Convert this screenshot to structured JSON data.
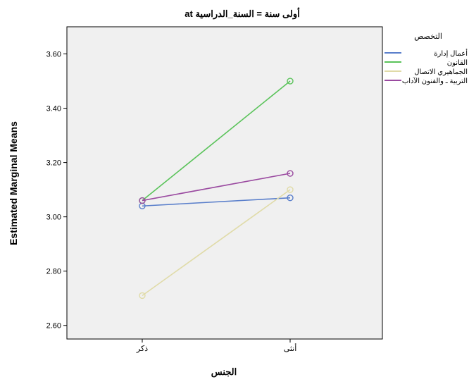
{
  "chart_data": {
    "type": "line",
    "title": "أولى سنة = السنة_الدراسية at",
    "xlabel": "الجنس",
    "ylabel": "Estimated Marginal Means",
    "categories": [
      "ذكر",
      "أنثى"
    ],
    "ylim": [
      2.55,
      3.7
    ],
    "yticks": [
      "2.60",
      "2.80",
      "3.00",
      "3.20",
      "3.40",
      "3.60"
    ],
    "ytick_values": [
      2.6,
      2.8,
      3.0,
      3.2,
      3.4,
      3.6
    ],
    "grid": false,
    "plot_background": "#f0f0f0",
    "legend": {
      "title": "التخصص",
      "placement": "right"
    },
    "series": [
      {
        "name": "أعمال إدارة",
        "color": "#5a7fcb",
        "values": [
          3.04,
          3.07
        ]
      },
      {
        "name": "القانون",
        "color": "#5ac35a",
        "values": [
          3.06,
          3.5
        ]
      },
      {
        "name": "الجماهيري الاتصال",
        "color": "#e0dba8",
        "values": [
          2.71,
          3.1
        ]
      },
      {
        "name": "التربية ـ والفنون الآداب",
        "color": "#9a4aa0",
        "values": [
          3.06,
          3.16
        ]
      }
    ]
  }
}
